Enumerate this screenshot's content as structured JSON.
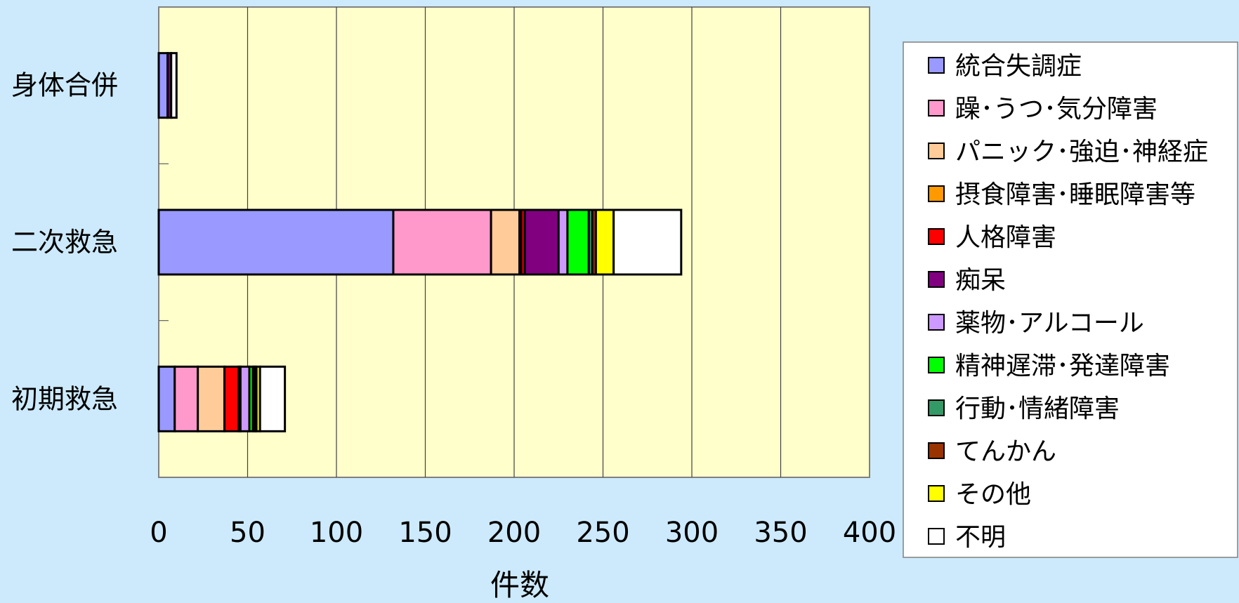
{
  "chart_data": {
    "type": "bar",
    "orientation": "horizontal",
    "stacked": true,
    "categories": [
      "身体合併",
      "二次救急",
      "初期救急"
    ],
    "xlabel": "件数",
    "xlim": [
      0,
      400
    ],
    "xticks": [
      0,
      50,
      100,
      150,
      200,
      250,
      300,
      350,
      400
    ],
    "grid": true,
    "legend_position": "right",
    "plot_background": "#ffffcc",
    "series": [
      {
        "name": "統合失調症",
        "color": "#9999ff",
        "values": [
          5,
          132,
          9
        ]
      },
      {
        "name": "躁･うつ･気分障害",
        "color": "#ff99cc",
        "values": [
          0,
          55,
          13
        ]
      },
      {
        "name": "パニック･強迫･神経症",
        "color": "#ffcc99",
        "values": [
          0,
          16,
          15
        ]
      },
      {
        "name": "摂食障害･睡眠障害等",
        "color": "#ff9900",
        "values": [
          0,
          1,
          0
        ]
      },
      {
        "name": "人格障害",
        "color": "#ff0000",
        "values": [
          0,
          2,
          8
        ]
      },
      {
        "name": "痴呆",
        "color": "#800080",
        "values": [
          2,
          19,
          1
        ]
      },
      {
        "name": "薬物･アルコール",
        "color": "#cc99ff",
        "values": [
          0,
          5,
          5
        ]
      },
      {
        "name": "精神遅滞･発達障害",
        "color": "#00ff00",
        "values": [
          0,
          12,
          2
        ]
      },
      {
        "name": "行動･情緒障害",
        "color": "#339966",
        "values": [
          0,
          2,
          1
        ]
      },
      {
        "name": "てんかん",
        "color": "#993300",
        "values": [
          0,
          2,
          1
        ]
      },
      {
        "name": "その他",
        "color": "#ffff00",
        "values": [
          0,
          10,
          2
        ]
      },
      {
        "name": "不明",
        "color": "#ffffff",
        "values": [
          3,
          38,
          14
        ]
      }
    ]
  }
}
